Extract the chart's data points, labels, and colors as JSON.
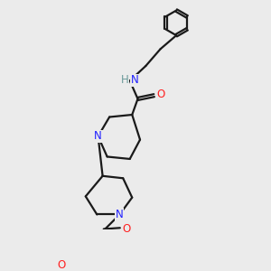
{
  "bg_color": "#ebebeb",
  "bond_color": "#1a1a1a",
  "N_color": "#2020ff",
  "O_color": "#ff2020",
  "H_color": "#6a9a9a",
  "line_width": 1.6,
  "font_size_atom": 8.5,
  "fig_size": [
    3.0,
    3.0
  ],
  "dpi": 100,
  "xlim": [
    0,
    10
  ],
  "ylim": [
    0,
    10
  ]
}
